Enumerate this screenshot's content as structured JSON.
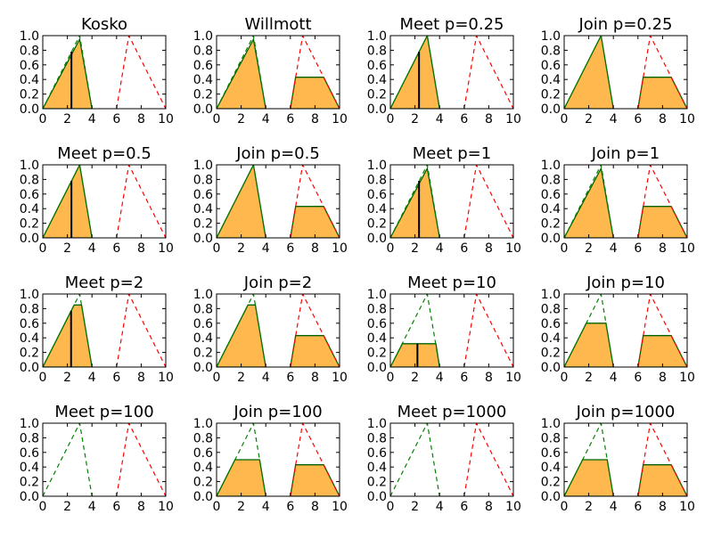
{
  "figure": {
    "background": "#ffffff"
  },
  "style": {
    "fill_color": "#ffb84d",
    "outline_color": "#006400",
    "consequent_color": "#ff0000",
    "antecedent_color": "#008000",
    "centroid_color": "#000000",
    "frame_color": "#000000"
  },
  "chart_data": [
    {
      "type": "area",
      "title": "Kosko",
      "xlim": [
        0,
        10
      ],
      "ylim": [
        0,
        1
      ],
      "x_ticks": [
        "0",
        "2",
        "4",
        "6",
        "8",
        "10"
      ],
      "y_ticks": [
        "0.0",
        "0.2",
        "0.4",
        "0.6",
        "0.8",
        "1.0"
      ],
      "antecedent": {
        "x": [
          0,
          3,
          4
        ],
        "y": [
          0,
          1,
          0
        ]
      },
      "consequent": {
        "x": [
          6,
          7,
          10
        ],
        "y": [
          0,
          1,
          0
        ]
      },
      "fill": [
        [
          {
            "x": 0,
            "y": 0
          },
          {
            "x": 3,
            "y": 0.95
          },
          {
            "x": 4,
            "y": 0
          }
        ]
      ],
      "centroid": {
        "x": 2.33,
        "y": 0.78
      }
    },
    {
      "type": "area",
      "title": "Willmott",
      "xlim": [
        0,
        10
      ],
      "ylim": [
        0,
        1
      ],
      "x_ticks": [
        "0",
        "2",
        "4",
        "6",
        "8",
        "10"
      ],
      "y_ticks": [
        "0.0",
        "0.2",
        "0.4",
        "0.6",
        "0.8",
        "1.0"
      ],
      "antecedent": {
        "x": [
          0,
          3,
          4
        ],
        "y": [
          0,
          1,
          0
        ]
      },
      "consequent": {
        "x": [
          6,
          7,
          10
        ],
        "y": [
          0,
          1,
          0
        ]
      },
      "fill": [
        [
          {
            "x": 0,
            "y": 0
          },
          {
            "x": 3,
            "y": 0.95
          },
          {
            "x": 4,
            "y": 0
          }
        ],
        [
          {
            "x": 6,
            "y": 0
          },
          {
            "x": 6.43,
            "y": 0.43
          },
          {
            "x": 8.7,
            "y": 0.43
          },
          {
            "x": 10,
            "y": 0
          }
        ]
      ],
      "centroid": null
    },
    {
      "type": "area",
      "title": "Meet p=0.25",
      "xlim": [
        0,
        10
      ],
      "ylim": [
        0,
        1
      ],
      "x_ticks": [
        "0",
        "2",
        "4",
        "6",
        "8",
        "10"
      ],
      "y_ticks": [
        "0.0",
        "0.2",
        "0.4",
        "0.6",
        "0.8",
        "1.0"
      ],
      "antecedent": {
        "x": [
          0,
          3,
          4
        ],
        "y": [
          0,
          1,
          0
        ]
      },
      "consequent": {
        "x": [
          6,
          7,
          10
        ],
        "y": [
          0,
          1,
          0
        ]
      },
      "fill": [
        [
          {
            "x": 0,
            "y": 0
          },
          {
            "x": 3,
            "y": 1.0
          },
          {
            "x": 4,
            "y": 0
          }
        ]
      ],
      "centroid": {
        "x": 2.33,
        "y": 0.78
      }
    },
    {
      "type": "area",
      "title": "Join p=0.25",
      "xlim": [
        0,
        10
      ],
      "ylim": [
        0,
        1
      ],
      "x_ticks": [
        "0",
        "2",
        "4",
        "6",
        "8",
        "10"
      ],
      "y_ticks": [
        "0.0",
        "0.2",
        "0.4",
        "0.6",
        "0.8",
        "1.0"
      ],
      "antecedent": {
        "x": [
          0,
          3,
          4
        ],
        "y": [
          0,
          1,
          0
        ]
      },
      "consequent": {
        "x": [
          6,
          7,
          10
        ],
        "y": [
          0,
          1,
          0
        ]
      },
      "fill": [
        [
          {
            "x": 0,
            "y": 0
          },
          {
            "x": 3,
            "y": 1.0
          },
          {
            "x": 4,
            "y": 0
          }
        ],
        [
          {
            "x": 6,
            "y": 0
          },
          {
            "x": 6.43,
            "y": 0.43
          },
          {
            "x": 8.7,
            "y": 0.43
          },
          {
            "x": 10,
            "y": 0
          }
        ]
      ],
      "centroid": null
    },
    {
      "type": "area",
      "title": "Meet p=0.5",
      "xlim": [
        0,
        10
      ],
      "ylim": [
        0,
        1
      ],
      "x_ticks": [
        "0",
        "2",
        "4",
        "6",
        "8",
        "10"
      ],
      "y_ticks": [
        "0.0",
        "0.2",
        "0.4",
        "0.6",
        "0.8",
        "1.0"
      ],
      "antecedent": {
        "x": [
          0,
          3,
          4
        ],
        "y": [
          0,
          1,
          0
        ]
      },
      "consequent": {
        "x": [
          6,
          7,
          10
        ],
        "y": [
          0,
          1,
          0
        ]
      },
      "fill": [
        [
          {
            "x": 0,
            "y": 0
          },
          {
            "x": 3,
            "y": 1.0
          },
          {
            "x": 4,
            "y": 0
          }
        ]
      ],
      "centroid": {
        "x": 2.33,
        "y": 0.78
      }
    },
    {
      "type": "area",
      "title": "Join p=0.5",
      "xlim": [
        0,
        10
      ],
      "ylim": [
        0,
        1
      ],
      "x_ticks": [
        "0",
        "2",
        "4",
        "6",
        "8",
        "10"
      ],
      "y_ticks": [
        "0.0",
        "0.2",
        "0.4",
        "0.6",
        "0.8",
        "1.0"
      ],
      "antecedent": {
        "x": [
          0,
          3,
          4
        ],
        "y": [
          0,
          1,
          0
        ]
      },
      "consequent": {
        "x": [
          6,
          7,
          10
        ],
        "y": [
          0,
          1,
          0
        ]
      },
      "fill": [
        [
          {
            "x": 0,
            "y": 0
          },
          {
            "x": 3,
            "y": 1.0
          },
          {
            "x": 4,
            "y": 0
          }
        ],
        [
          {
            "x": 6,
            "y": 0
          },
          {
            "x": 6.43,
            "y": 0.43
          },
          {
            "x": 8.7,
            "y": 0.43
          },
          {
            "x": 10,
            "y": 0
          }
        ]
      ],
      "centroid": null
    },
    {
      "type": "area",
      "title": "Meet p=1",
      "xlim": [
        0,
        10
      ],
      "ylim": [
        0,
        1
      ],
      "x_ticks": [
        "0",
        "2",
        "4",
        "6",
        "8",
        "10"
      ],
      "y_ticks": [
        "0.0",
        "0.2",
        "0.4",
        "0.6",
        "0.8",
        "1.0"
      ],
      "antecedent": {
        "x": [
          0,
          3,
          4
        ],
        "y": [
          0,
          1,
          0
        ]
      },
      "consequent": {
        "x": [
          6,
          7,
          10
        ],
        "y": [
          0,
          1,
          0
        ]
      },
      "fill": [
        [
          {
            "x": 0,
            "y": 0
          },
          {
            "x": 3,
            "y": 0.95
          },
          {
            "x": 4,
            "y": 0
          }
        ]
      ],
      "centroid": {
        "x": 2.33,
        "y": 0.78
      }
    },
    {
      "type": "area",
      "title": "Join p=1",
      "xlim": [
        0,
        10
      ],
      "ylim": [
        0,
        1
      ],
      "x_ticks": [
        "0",
        "2",
        "4",
        "6",
        "8",
        "10"
      ],
      "y_ticks": [
        "0.0",
        "0.2",
        "0.4",
        "0.6",
        "0.8",
        "1.0"
      ],
      "antecedent": {
        "x": [
          0,
          3,
          4
        ],
        "y": [
          0,
          1,
          0
        ]
      },
      "consequent": {
        "x": [
          6,
          7,
          10
        ],
        "y": [
          0,
          1,
          0
        ]
      },
      "fill": [
        [
          {
            "x": 0,
            "y": 0
          },
          {
            "x": 3,
            "y": 0.95
          },
          {
            "x": 4,
            "y": 0
          }
        ],
        [
          {
            "x": 6,
            "y": 0
          },
          {
            "x": 6.43,
            "y": 0.43
          },
          {
            "x": 8.7,
            "y": 0.43
          },
          {
            "x": 10,
            "y": 0
          }
        ]
      ],
      "centroid": null
    },
    {
      "type": "area",
      "title": "Meet p=2",
      "xlim": [
        0,
        10
      ],
      "ylim": [
        0,
        1
      ],
      "x_ticks": [
        "0",
        "2",
        "4",
        "6",
        "8",
        "10"
      ],
      "y_ticks": [
        "0.0",
        "0.2",
        "0.4",
        "0.6",
        "0.8",
        "1.0"
      ],
      "antecedent": {
        "x": [
          0,
          3,
          4
        ],
        "y": [
          0,
          1,
          0
        ]
      },
      "consequent": {
        "x": [
          6,
          7,
          10
        ],
        "y": [
          0,
          1,
          0
        ]
      },
      "fill": [
        [
          {
            "x": 0,
            "y": 0
          },
          {
            "x": 2.55,
            "y": 0.85
          },
          {
            "x": 3.15,
            "y": 0.85
          },
          {
            "x": 4,
            "y": 0
          }
        ]
      ],
      "centroid": {
        "x": 2.3,
        "y": 0.77
      }
    },
    {
      "type": "area",
      "title": "Join p=2",
      "xlim": [
        0,
        10
      ],
      "ylim": [
        0,
        1
      ],
      "x_ticks": [
        "0",
        "2",
        "4",
        "6",
        "8",
        "10"
      ],
      "y_ticks": [
        "0.0",
        "0.2",
        "0.4",
        "0.6",
        "0.8",
        "1.0"
      ],
      "antecedent": {
        "x": [
          0,
          3,
          4
        ],
        "y": [
          0,
          1,
          0
        ]
      },
      "consequent": {
        "x": [
          6,
          7,
          10
        ],
        "y": [
          0,
          1,
          0
        ]
      },
      "fill": [
        [
          {
            "x": 0,
            "y": 0
          },
          {
            "x": 2.55,
            "y": 0.85
          },
          {
            "x": 3.15,
            "y": 0.85
          },
          {
            "x": 4,
            "y": 0
          }
        ],
        [
          {
            "x": 6,
            "y": 0
          },
          {
            "x": 6.43,
            "y": 0.43
          },
          {
            "x": 8.7,
            "y": 0.43
          },
          {
            "x": 10,
            "y": 0
          }
        ]
      ],
      "centroid": null
    },
    {
      "type": "area",
      "title": "Meet p=10",
      "xlim": [
        0,
        10
      ],
      "ylim": [
        0,
        1
      ],
      "x_ticks": [
        "0",
        "2",
        "4",
        "6",
        "8",
        "10"
      ],
      "y_ticks": [
        "0.0",
        "0.2",
        "0.4",
        "0.6",
        "0.8",
        "1.0"
      ],
      "antecedent": {
        "x": [
          0,
          3,
          4
        ],
        "y": [
          0,
          1,
          0
        ]
      },
      "consequent": {
        "x": [
          6,
          7,
          10
        ],
        "y": [
          0,
          1,
          0
        ]
      },
      "fill": [
        [
          {
            "x": 0,
            "y": 0
          },
          {
            "x": 0.98,
            "y": 0.32
          },
          {
            "x": 3.7,
            "y": 0.32
          },
          {
            "x": 4,
            "y": 0
          }
        ]
      ],
      "centroid": {
        "x": 2.2,
        "y": 0.32
      }
    },
    {
      "type": "area",
      "title": "Join p=10",
      "xlim": [
        0,
        10
      ],
      "ylim": [
        0,
        1
      ],
      "x_ticks": [
        "0",
        "2",
        "4",
        "6",
        "8",
        "10"
      ],
      "y_ticks": [
        "0.0",
        "0.2",
        "0.4",
        "0.6",
        "0.8",
        "1.0"
      ],
      "antecedent": {
        "x": [
          0,
          3,
          4
        ],
        "y": [
          0,
          1,
          0
        ]
      },
      "consequent": {
        "x": [
          6,
          7,
          10
        ],
        "y": [
          0,
          1,
          0
        ]
      },
      "fill": [
        [
          {
            "x": 0,
            "y": 0
          },
          {
            "x": 1.8,
            "y": 0.6
          },
          {
            "x": 3.4,
            "y": 0.6
          },
          {
            "x": 4,
            "y": 0
          }
        ],
        [
          {
            "x": 6,
            "y": 0
          },
          {
            "x": 6.43,
            "y": 0.43
          },
          {
            "x": 8.7,
            "y": 0.43
          },
          {
            "x": 10,
            "y": 0
          }
        ]
      ],
      "centroid": null
    },
    {
      "type": "area",
      "title": "Meet p=100",
      "xlim": [
        0,
        10
      ],
      "ylim": [
        0,
        1
      ],
      "x_ticks": [
        "0",
        "2",
        "4",
        "6",
        "8",
        "10"
      ],
      "y_ticks": [
        "0.0",
        "0.2",
        "0.4",
        "0.6",
        "0.8",
        "1.0"
      ],
      "antecedent": {
        "x": [
          0,
          3,
          4
        ],
        "y": [
          0,
          1,
          0
        ]
      },
      "consequent": {
        "x": [
          6,
          7,
          10
        ],
        "y": [
          0,
          1,
          0
        ]
      },
      "fill": [],
      "centroid": null
    },
    {
      "type": "area",
      "title": "Join p=100",
      "xlim": [
        0,
        10
      ],
      "ylim": [
        0,
        1
      ],
      "x_ticks": [
        "0",
        "2",
        "4",
        "6",
        "8",
        "10"
      ],
      "y_ticks": [
        "0.0",
        "0.2",
        "0.4",
        "0.6",
        "0.8",
        "1.0"
      ],
      "antecedent": {
        "x": [
          0,
          3,
          4
        ],
        "y": [
          0,
          1,
          0
        ]
      },
      "consequent": {
        "x": [
          6,
          7,
          10
        ],
        "y": [
          0,
          1,
          0
        ]
      },
      "fill": [
        [
          {
            "x": 0,
            "y": 0
          },
          {
            "x": 1.5,
            "y": 0.5
          },
          {
            "x": 3.5,
            "y": 0.5
          },
          {
            "x": 4,
            "y": 0
          }
        ],
        [
          {
            "x": 6,
            "y": 0
          },
          {
            "x": 6.43,
            "y": 0.43
          },
          {
            "x": 8.7,
            "y": 0.43
          },
          {
            "x": 10,
            "y": 0
          }
        ]
      ],
      "centroid": null
    },
    {
      "type": "area",
      "title": "Meet p=1000",
      "xlim": [
        0,
        10
      ],
      "ylim": [
        0,
        1
      ],
      "x_ticks": [
        "0",
        "2",
        "4",
        "6",
        "8",
        "10"
      ],
      "y_ticks": [
        "0.0",
        "0.2",
        "0.4",
        "0.6",
        "0.8",
        "1.0"
      ],
      "antecedent": {
        "x": [
          0,
          3,
          4
        ],
        "y": [
          0,
          1,
          0
        ]
      },
      "consequent": {
        "x": [
          6,
          7,
          10
        ],
        "y": [
          0,
          1,
          0
        ]
      },
      "fill": [],
      "centroid": null
    },
    {
      "type": "area",
      "title": "Join p=1000",
      "xlim": [
        0,
        10
      ],
      "ylim": [
        0,
        1
      ],
      "x_ticks": [
        "0",
        "2",
        "4",
        "6",
        "8",
        "10"
      ],
      "y_ticks": [
        "0.0",
        "0.2",
        "0.4",
        "0.6",
        "0.8",
        "1.0"
      ],
      "antecedent": {
        "x": [
          0,
          3,
          4
        ],
        "y": [
          0,
          1,
          0
        ]
      },
      "consequent": {
        "x": [
          6,
          7,
          10
        ],
        "y": [
          0,
          1,
          0
        ]
      },
      "fill": [
        [
          {
            "x": 0,
            "y": 0
          },
          {
            "x": 1.5,
            "y": 0.5
          },
          {
            "x": 3.5,
            "y": 0.5
          },
          {
            "x": 4,
            "y": 0
          }
        ],
        [
          {
            "x": 6,
            "y": 0
          },
          {
            "x": 6.43,
            "y": 0.43
          },
          {
            "x": 8.7,
            "y": 0.43
          },
          {
            "x": 10,
            "y": 0
          }
        ]
      ],
      "centroid": null
    }
  ]
}
